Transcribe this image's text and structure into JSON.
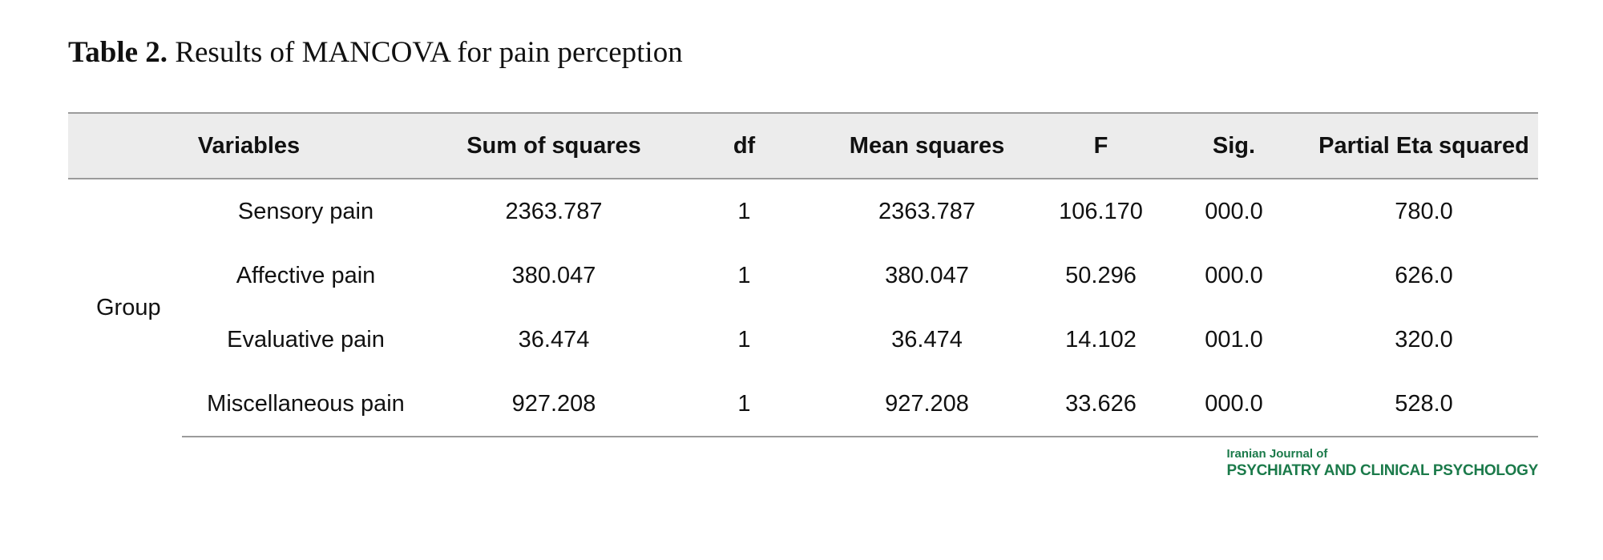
{
  "caption": {
    "label": "Table 2.",
    "text": "Results of MANCOVA for pain perception"
  },
  "table": {
    "headers": [
      "Variables",
      "Sum of squares",
      "df",
      "Mean squares",
      "F",
      "Sig.",
      "Partial Eta squared"
    ],
    "group_label": "Group",
    "rows": [
      {
        "variable": "Sensory pain",
        "ss": "2363.787",
        "df": "1",
        "ms": "2363.787",
        "f": "106.170",
        "sig": "000.0",
        "eta": "780.0"
      },
      {
        "variable": "Affective pain",
        "ss": "380.047",
        "df": "1",
        "ms": "380.047",
        "f": "50.296",
        "sig": "000.0",
        "eta": "626.0"
      },
      {
        "variable": "Evaluative pain",
        "ss": "36.474",
        "df": "1",
        "ms": "36.474",
        "f": "14.102",
        "sig": "001.0",
        "eta": "320.0"
      },
      {
        "variable": "Miscellaneous pain",
        "ss": "927.208",
        "df": "1",
        "ms": "927.208",
        "f": "33.626",
        "sig": "000.0",
        "eta": "528.0"
      }
    ]
  },
  "journal": {
    "line1": "Iranian Journal of",
    "line2": "PSYCHIATRY AND CLINICAL PSYCHOLOGY",
    "color": "#1b7a4a"
  }
}
